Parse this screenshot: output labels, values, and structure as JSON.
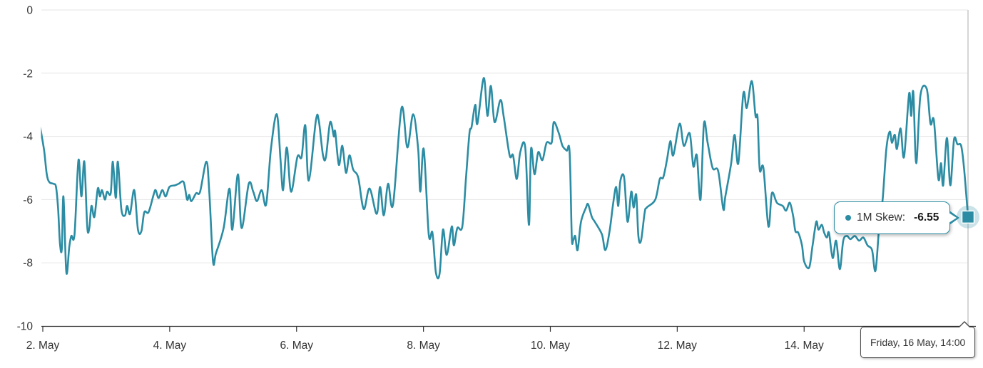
{
  "colors": {
    "accent": "#2b8ca3",
    "grid": "#e6e6e6",
    "axis": "#333333",
    "crosshair": "#cccccc",
    "text": "#333333",
    "halo": "rgba(43,140,163,0.25)",
    "tooltip_border": "#2b8ca3",
    "date_tooltip_border": "#4d4d4d"
  },
  "tooltip": {
    "series_label": "1M Skew:",
    "value": "-6.55"
  },
  "date_tooltip": {
    "text": "Friday, 16 May, 14:00"
  },
  "chart_data": {
    "type": "line",
    "title": "",
    "legend": "none",
    "grid": "horizontal",
    "y_axis": {
      "min": -10,
      "max": 0,
      "ticks": [
        0,
        -2,
        -4,
        -6,
        -8,
        -10
      ]
    },
    "x_axis": {
      "type": "datetime",
      "unit_note": "point x = hours since 2 May 00:00; range 1 May 23:00 to 16 May 14:00",
      "ticks": [
        {
          "day": 2,
          "label": "2. May"
        },
        {
          "day": 4,
          "label": "4. May"
        },
        {
          "day": 6,
          "label": "6. May"
        },
        {
          "day": 8,
          "label": "8. May"
        },
        {
          "day": 10,
          "label": "10. May"
        },
        {
          "day": 12,
          "label": "12. May"
        },
        {
          "day": 14,
          "label": "14. May"
        },
        {
          "day": 16,
          "label": "16. May"
        }
      ]
    },
    "highlight": {
      "time": "Friday, 16 May, 14:00",
      "value": -6.55
    },
    "series": [
      {
        "name": "1M Skew",
        "color": "#2b8ca3",
        "points": [
          [
            -1,
            -3.7
          ],
          [
            0.5,
            -4.45
          ],
          [
            1.5,
            -5.2
          ],
          [
            2.5,
            -5.45
          ],
          [
            4,
            -5.5
          ],
          [
            5,
            -5.6
          ],
          [
            5.8,
            -6.3
          ],
          [
            6.5,
            -7.4
          ],
          [
            7.2,
            -7.55
          ],
          [
            7.8,
            -5.9
          ],
          [
            8.9,
            -8.3
          ],
          [
            10,
            -7.5
          ],
          [
            10.8,
            -7.15
          ],
          [
            12,
            -7.1
          ],
          [
            13.5,
            -4.75
          ],
          [
            14.6,
            -5.9
          ],
          [
            15.7,
            -4.8
          ],
          [
            16.8,
            -6.85
          ],
          [
            17.6,
            -6.9
          ],
          [
            18.4,
            -6.2
          ],
          [
            19.5,
            -6.55
          ],
          [
            20.8,
            -5.65
          ],
          [
            21.6,
            -5.9
          ],
          [
            22.4,
            -5.7
          ],
          [
            23.5,
            -6
          ],
          [
            24.3,
            -5.75
          ],
          [
            25.7,
            -5.8
          ],
          [
            26.5,
            -4.8
          ],
          [
            27.6,
            -5.95
          ],
          [
            28.4,
            -4.8
          ],
          [
            29.7,
            -6.3
          ],
          [
            31.1,
            -6.5
          ],
          [
            31.9,
            -6.2
          ],
          [
            33,
            -6.45
          ],
          [
            34.6,
            -5.7
          ],
          [
            36,
            -6.95
          ],
          [
            37.3,
            -7
          ],
          [
            38.4,
            -6.4
          ],
          [
            40,
            -6.4
          ],
          [
            41.9,
            -5.85
          ],
          [
            42.7,
            -5.7
          ],
          [
            43.8,
            -5.95
          ],
          [
            45.2,
            -5.7
          ],
          [
            46.5,
            -5.9
          ],
          [
            47.9,
            -5.6
          ],
          [
            50,
            -5.55
          ],
          [
            51.4,
            -5.5
          ],
          [
            53.3,
            -5.45
          ],
          [
            54.6,
            -6
          ],
          [
            55.4,
            -5.85
          ],
          [
            56.2,
            -6.05
          ],
          [
            58,
            -5.8
          ],
          [
            59.5,
            -5.75
          ],
          [
            61.9,
            -4.8
          ],
          [
            63,
            -5.8
          ],
          [
            64.4,
            -7.95
          ],
          [
            65.5,
            -7.7
          ],
          [
            68.4,
            -6.9
          ],
          [
            70.6,
            -5.65
          ],
          [
            71.7,
            -6.95
          ],
          [
            73.8,
            -5.2
          ],
          [
            75.2,
            -6.9
          ],
          [
            77.9,
            -5.5
          ],
          [
            79.6,
            -5.75
          ],
          [
            81,
            -6.05
          ],
          [
            82.8,
            -5.7
          ],
          [
            84.5,
            -6.15
          ],
          [
            86.3,
            -4.4
          ],
          [
            88.5,
            -3.3
          ],
          [
            89.9,
            -4.7
          ],
          [
            90.9,
            -5.7
          ],
          [
            92.3,
            -4.35
          ],
          [
            93.9,
            -5.75
          ],
          [
            96.3,
            -4.65
          ],
          [
            97.9,
            -4.65
          ],
          [
            99.3,
            -3.65
          ],
          [
            100.6,
            -5.4
          ],
          [
            103.3,
            -3.5
          ],
          [
            104.4,
            -3.5
          ],
          [
            106,
            -4.6
          ],
          [
            107.1,
            -4.65
          ],
          [
            108.7,
            -3.55
          ],
          [
            110.1,
            -4
          ],
          [
            110.6,
            -3.85
          ],
          [
            112,
            -4.9
          ],
          [
            113.3,
            -4.3
          ],
          [
            114.7,
            -5.15
          ],
          [
            116,
            -4.6
          ],
          [
            117.4,
            -5.05
          ],
          [
            119.3,
            -5.3
          ],
          [
            121.4,
            -6.3
          ],
          [
            123.6,
            -5.65
          ],
          [
            126.3,
            -6.45
          ],
          [
            127.6,
            -5.6
          ],
          [
            129,
            -6.5
          ],
          [
            130.6,
            -5.5
          ],
          [
            132.5,
            -6.15
          ],
          [
            135.7,
            -3.1
          ],
          [
            137.9,
            -4.35
          ],
          [
            140.1,
            -3.3
          ],
          [
            142,
            -4.4
          ],
          [
            142.8,
            -5.75
          ],
          [
            144.1,
            -4.4
          ],
          [
            146,
            -7.1
          ],
          [
            147.4,
            -7.05
          ],
          [
            148.7,
            -8.3
          ],
          [
            150.1,
            -8.35
          ],
          [
            151.4,
            -6.95
          ],
          [
            152.8,
            -7.75
          ],
          [
            154.7,
            -6.85
          ],
          [
            155.5,
            -7.45
          ],
          [
            156.8,
            -6.9
          ],
          [
            158.7,
            -6.85
          ],
          [
            160.1,
            -5.3
          ],
          [
            161.4,
            -3.9
          ],
          [
            162.2,
            -3.7
          ],
          [
            163.6,
            -3
          ],
          [
            164.4,
            -3.6
          ],
          [
            166.8,
            -2.15
          ],
          [
            168.2,
            -3.35
          ],
          [
            169.5,
            -2.4
          ],
          [
            170.9,
            -3.55
          ],
          [
            173.1,
            -2.85
          ],
          [
            174.4,
            -3.4
          ],
          [
            176.6,
            -4.6
          ],
          [
            177.9,
            -4.6
          ],
          [
            179.3,
            -5.35
          ],
          [
            180.6,
            -4.5
          ],
          [
            182.5,
            -4.35
          ],
          [
            183.9,
            -6.8
          ],
          [
            184.7,
            -4.4
          ],
          [
            186,
            -5.2
          ],
          [
            187.4,
            -4.5
          ],
          [
            189,
            -4.75
          ],
          [
            190.6,
            -4.2
          ],
          [
            192.5,
            -4.2
          ],
          [
            193.3,
            -3.55
          ],
          [
            195.2,
            -3.9
          ],
          [
            196.6,
            -4.3
          ],
          [
            198.2,
            -4.45
          ],
          [
            199.3,
            -4.5
          ],
          [
            200.1,
            -7.15
          ],
          [
            200.6,
            -7.3
          ],
          [
            201.4,
            -7.15
          ],
          [
            202.3,
            -7.6
          ],
          [
            203.6,
            -6.7
          ],
          [
            205.5,
            -6.25
          ],
          [
            206.3,
            -6.15
          ],
          [
            207.7,
            -6.55
          ],
          [
            208.8,
            -6.7
          ],
          [
            211.5,
            -7.1
          ],
          [
            212.8,
            -7.6
          ],
          [
            214.4,
            -7
          ],
          [
            215.8,
            -6.1
          ],
          [
            216.9,
            -5.6
          ],
          [
            217.7,
            -6.2
          ],
          [
            218.5,
            -5.4
          ],
          [
            219.9,
            -5.3
          ],
          [
            221.2,
            -6.7
          ],
          [
            222.6,
            -5.75
          ],
          [
            223.5,
            -6.25
          ],
          [
            224.5,
            -5.85
          ],
          [
            225.3,
            -7.15
          ],
          [
            226.3,
            -7.3
          ],
          [
            227.7,
            -6.4
          ],
          [
            228.5,
            -6.25
          ],
          [
            231.7,
            -6
          ],
          [
            233.4,
            -5.35
          ],
          [
            234.7,
            -5.3
          ],
          [
            236.1,
            -4.75
          ],
          [
            237.4,
            -4.15
          ],
          [
            238.5,
            -4.6
          ],
          [
            240.9,
            -3.6
          ],
          [
            242.5,
            -4.3
          ],
          [
            244.7,
            -3.9
          ],
          [
            246.1,
            -4.95
          ],
          [
            247.4,
            -4.6
          ],
          [
            248.8,
            -6
          ],
          [
            250.1,
            -3.6
          ],
          [
            251.5,
            -4.2
          ],
          [
            253.4,
            -5
          ],
          [
            255.5,
            -5.1
          ],
          [
            257.4,
            -6.3
          ],
          [
            258.2,
            -5.9
          ],
          [
            260.4,
            -4.85
          ],
          [
            261.7,
            -3.95
          ],
          [
            263.1,
            -4.85
          ],
          [
            265,
            -2.65
          ],
          [
            266.3,
            -3.1
          ],
          [
            268.2,
            -2.25
          ],
          [
            269.6,
            -3.35
          ],
          [
            270.4,
            -3.4
          ],
          [
            271.2,
            -5.05
          ],
          [
            272.6,
            -5
          ],
          [
            274.5,
            -6.85
          ],
          [
            275.8,
            -5.8
          ],
          [
            277.7,
            -6.1
          ],
          [
            279.9,
            -6.2
          ],
          [
            281.2,
            -6.35
          ],
          [
            282.6,
            -6.1
          ],
          [
            283.9,
            -6.55
          ],
          [
            284.7,
            -7
          ],
          [
            285.8,
            -7.05
          ],
          [
            287.2,
            -7.45
          ],
          [
            288,
            -7.95
          ],
          [
            289.9,
            -8.15
          ],
          [
            291.2,
            -7.45
          ],
          [
            292.6,
            -6.7
          ],
          [
            293.4,
            -6.95
          ],
          [
            294.7,
            -6.8
          ],
          [
            295.6,
            -7.05
          ],
          [
            296.6,
            -7.2
          ],
          [
            297.4,
            -7.05
          ],
          [
            298.8,
            -7.85
          ],
          [
            300.1,
            -7.3
          ],
          [
            301.5,
            -8.2
          ],
          [
            302.8,
            -7.3
          ],
          [
            304.2,
            -7.15
          ],
          [
            305.5,
            -7.25
          ],
          [
            307.2,
            -7.15
          ],
          [
            308.8,
            -7.3
          ],
          [
            310.4,
            -7.2
          ],
          [
            312,
            -7.45
          ],
          [
            313.7,
            -7.6
          ],
          [
            315,
            -8.25
          ],
          [
            316.4,
            -6.85
          ],
          [
            317.7,
            -6
          ],
          [
            319.1,
            -4.4
          ],
          [
            320.4,
            -3.85
          ],
          [
            321.2,
            -4.2
          ],
          [
            322.3,
            -3.95
          ],
          [
            323.1,
            -4.4
          ],
          [
            324.5,
            -3.75
          ],
          [
            325.8,
            -4.65
          ],
          [
            327.7,
            -2.65
          ],
          [
            328.5,
            -3.35
          ],
          [
            329.3,
            -2.6
          ],
          [
            330.4,
            -4.85
          ],
          [
            332,
            -2.7
          ],
          [
            334.4,
            -2.5
          ],
          [
            335.8,
            -3.6
          ],
          [
            337.1,
            -3.5
          ],
          [
            338.8,
            -5.35
          ],
          [
            339.8,
            -4.85
          ],
          [
            340.6,
            -5.55
          ],
          [
            342,
            -4.05
          ],
          [
            343.3,
            -5.55
          ],
          [
            344.7,
            -4.1
          ],
          [
            346,
            -4.25
          ],
          [
            347.4,
            -4.3
          ],
          [
            348.5,
            -5
          ],
          [
            350,
            -6.55
          ]
        ]
      }
    ]
  }
}
